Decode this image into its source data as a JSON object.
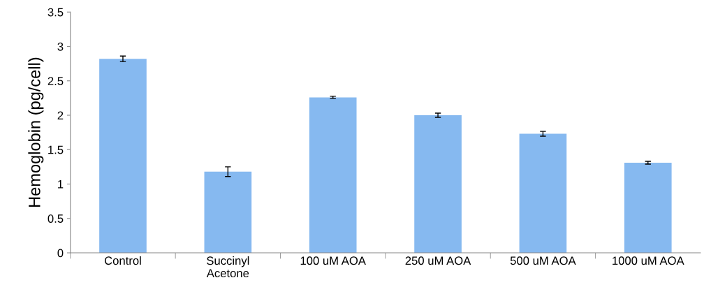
{
  "chart_data": {
    "type": "bar",
    "ylabel": "Hemoglobin (pg/cell)",
    "categories": [
      "Control",
      "Succinyl\nAcetone",
      "100 uM AOA",
      "250 uM AOA",
      "500 uM AOA",
      "1000 uM AOA"
    ],
    "values": [
      2.82,
      1.18,
      2.26,
      2.0,
      1.73,
      1.31
    ],
    "errors": [
      0.04,
      0.07,
      0.015,
      0.03,
      0.035,
      0.02
    ],
    "color": "#86b9f0",
    "ylim": [
      0,
      3.5
    ],
    "yticks": [
      0,
      0.5,
      1,
      1.5,
      2,
      2.5,
      3,
      3.5
    ],
    "grid": false,
    "legend": false
  }
}
